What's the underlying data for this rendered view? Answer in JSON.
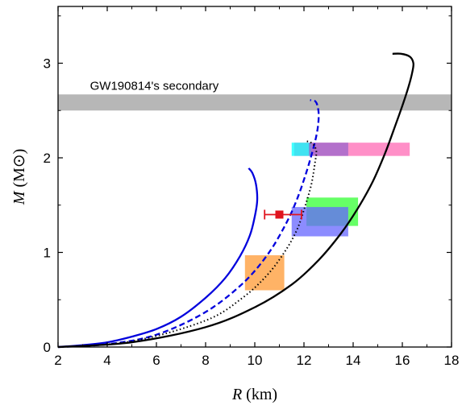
{
  "chart_data": {
    "type": "line",
    "xlabel": "R (km)",
    "ylabel": "M (M⊙)",
    "xlim": [
      2,
      18
    ],
    "ylim": [
      0,
      3.6
    ],
    "xticks": [
      2,
      4,
      6,
      8,
      10,
      12,
      14,
      16,
      18
    ],
    "yticks": [
      0,
      1,
      2,
      3
    ],
    "grid": false,
    "annotations": [
      {
        "text": "GW190814's secondary",
        "x": 3.3,
        "y": 2.72
      }
    ],
    "bands": [
      {
        "label": "GW190814's secondary",
        "y_min": 2.5,
        "y_max": 2.67,
        "color": "#999999"
      }
    ],
    "boxes": [
      {
        "x": [
          11.6,
          16.3
        ],
        "y": [
          2.02,
          2.16
        ],
        "color": "#ff69b4"
      },
      {
        "x": [
          11.5,
          12.3
        ],
        "y": [
          2.02,
          2.16
        ],
        "color": "#00ffff"
      },
      {
        "x": [
          12.2,
          13.8
        ],
        "y": [
          2.02,
          2.16
        ],
        "color": "#9966cc"
      },
      {
        "x": [
          12.1,
          14.2
        ],
        "y": [
          1.28,
          1.58
        ],
        "color": "#33ff33"
      },
      {
        "x": [
          11.5,
          13.8
        ],
        "y": [
          1.17,
          1.48
        ],
        "color": "#6666ff"
      },
      {
        "x": [
          9.6,
          11.2
        ],
        "y": [
          0.6,
          0.97
        ],
        "color": "#ff9933"
      }
    ],
    "point": {
      "x": 11.0,
      "y": 1.4,
      "xerr": [
        0.6,
        0.9
      ],
      "yerr": 0.04,
      "color": "#e0141e"
    },
    "series": [
      {
        "style": "solid",
        "color": "#0000dd",
        "x": [
          2.0,
          3.0,
          4.0,
          5.0,
          6.0,
          7.0,
          8.0,
          8.8,
          9.4,
          9.8,
          10.0,
          10.1,
          10.05,
          9.9,
          9.75
        ],
        "y": [
          0.0,
          0.02,
          0.05,
          0.11,
          0.19,
          0.32,
          0.52,
          0.73,
          0.96,
          1.18,
          1.38,
          1.55,
          1.72,
          1.84,
          1.89
        ]
      },
      {
        "style": "dashed",
        "color": "#0000dd",
        "x": [
          2.0,
          4.0,
          6.0,
          8.0,
          9.5,
          10.5,
          11.2,
          11.7,
          12.1,
          12.4,
          12.55,
          12.6,
          12.55,
          12.45,
          12.25
        ],
        "y": [
          0.0,
          0.03,
          0.13,
          0.37,
          0.67,
          0.97,
          1.27,
          1.55,
          1.85,
          2.12,
          2.3,
          2.45,
          2.55,
          2.6,
          2.61
        ]
      },
      {
        "style": "dotted",
        "color": "#000000",
        "x": [
          2.0,
          5.0,
          8.0,
          9.5,
          10.5,
          11.2,
          11.7,
          12.0,
          12.3,
          12.45,
          12.5,
          12.35,
          12.05
        ],
        "y": [
          0.0,
          0.06,
          0.28,
          0.52,
          0.76,
          1.0,
          1.23,
          1.45,
          1.72,
          1.95,
          2.07,
          2.15,
          2.18
        ]
      },
      {
        "style": "solid",
        "color": "#000000",
        "x": [
          2.0,
          5.0,
          8.0,
          10.0,
          11.5,
          12.6,
          13.5,
          14.2,
          14.8,
          15.3,
          15.7,
          16.0,
          16.25,
          16.4,
          16.45,
          16.3,
          15.95,
          15.6
        ],
        "y": [
          0.0,
          0.05,
          0.21,
          0.42,
          0.66,
          0.92,
          1.2,
          1.47,
          1.75,
          2.05,
          2.33,
          2.55,
          2.75,
          2.9,
          3.0,
          3.07,
          3.1,
          3.1
        ]
      }
    ]
  }
}
